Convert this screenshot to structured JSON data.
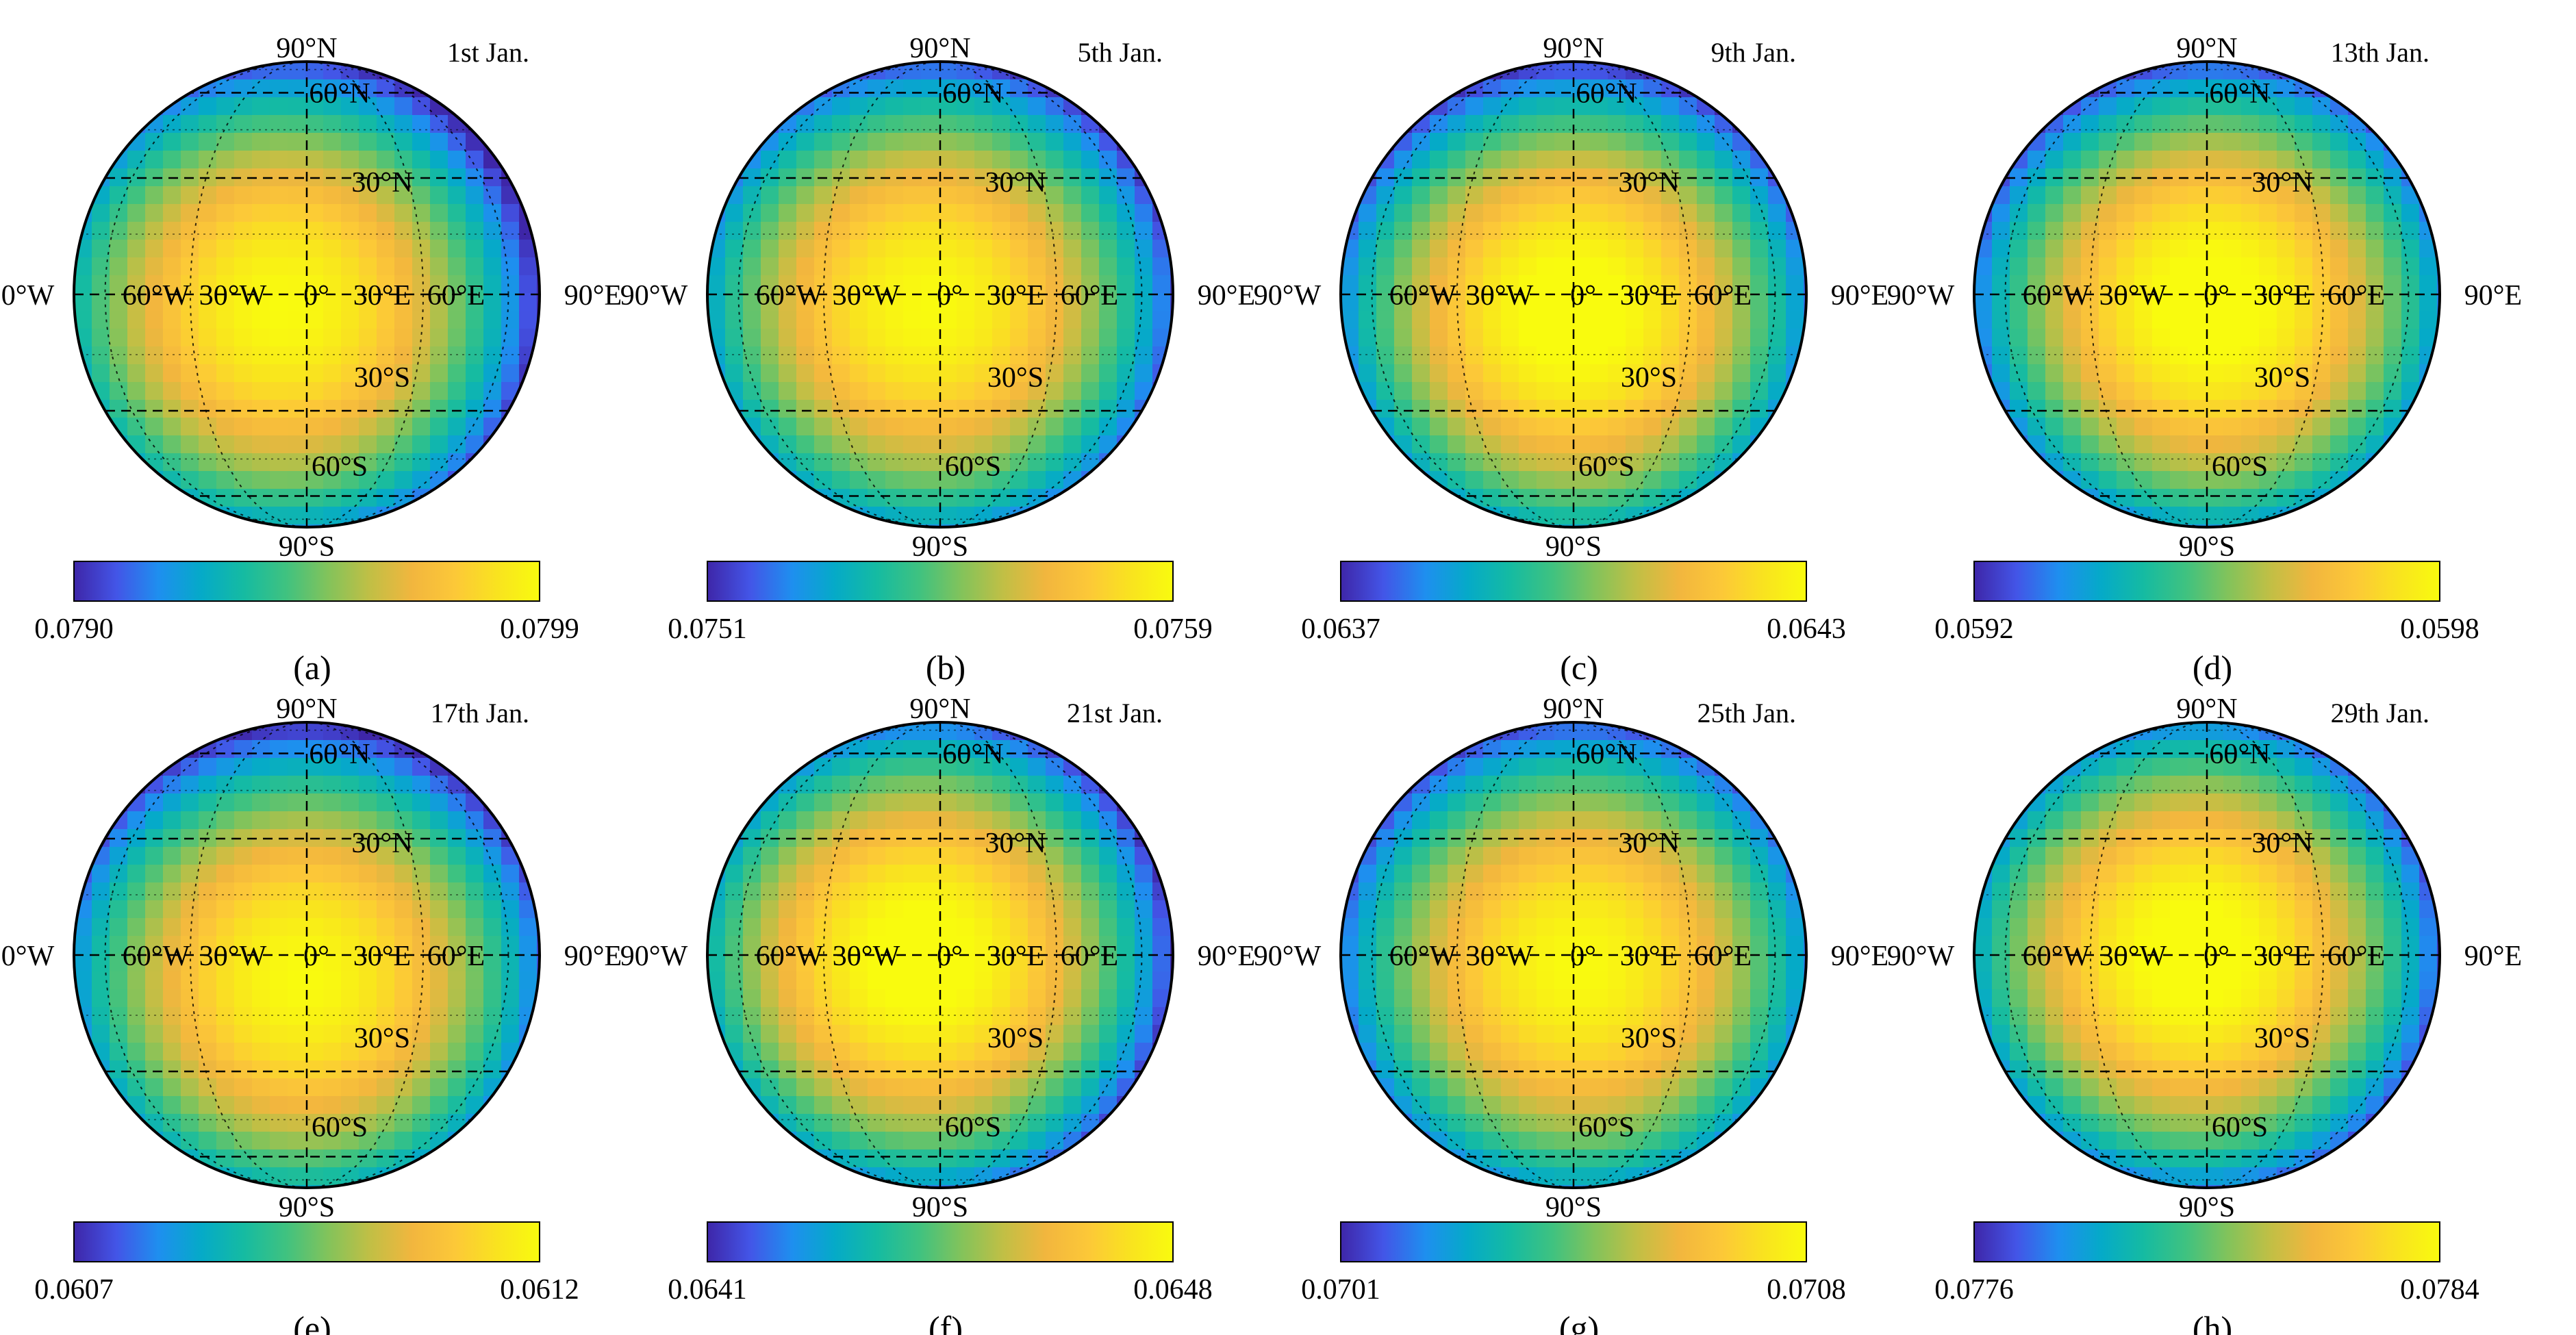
{
  "chart_data": [
    {
      "type": "heatmap",
      "panel_label": "(a)",
      "date": "1st Jan.",
      "colorbar": {
        "min_label": "0.0790",
        "max_label": "0.0799",
        "min": 0.079,
        "max": 0.0799
      },
      "center_offset": [
        -0.1,
        0.06
      ],
      "hot_scale": 1.0
    },
    {
      "type": "heatmap",
      "panel_label": "(b)",
      "date": "5th Jan.",
      "colorbar": {
        "min_label": "0.0751",
        "max_label": "0.0759",
        "min": 0.0751,
        "max": 0.0759
      },
      "center_offset": [
        -0.05,
        0.05
      ],
      "hot_scale": 1.0
    },
    {
      "type": "heatmap",
      "panel_label": "(c)",
      "date": "9th Jan.",
      "colorbar": {
        "min_label": "0.0637",
        "max_label": "0.0643",
        "min": 0.0637,
        "max": 0.0643
      },
      "center_offset": [
        0.0,
        0.08
      ],
      "hot_scale": 1.05
    },
    {
      "type": "heatmap",
      "panel_label": "(d)",
      "date": "13th Jan.",
      "colorbar": {
        "min_label": "0.0592",
        "max_label": "0.0598",
        "min": 0.0592,
        "max": 0.0598
      },
      "center_offset": [
        0.02,
        0.05
      ],
      "hot_scale": 1.05
    },
    {
      "type": "heatmap",
      "panel_label": "(e)",
      "date": "17th Jan.",
      "colorbar": {
        "min_label": "0.0607",
        "max_label": "0.0612",
        "min": 0.0607,
        "max": 0.0612
      },
      "center_offset": [
        -0.02,
        0.1
      ],
      "hot_scale": 1.0
    },
    {
      "type": "heatmap",
      "panel_label": "(f)",
      "date": "21st Jan.",
      "colorbar": {
        "min_label": "0.0641",
        "max_label": "0.0648",
        "min": 0.0641,
        "max": 0.0648
      },
      "center_offset": [
        -0.08,
        0.02
      ],
      "hot_scale": 1.05
    },
    {
      "type": "heatmap",
      "panel_label": "(g)",
      "date": "25th Jan.",
      "colorbar": {
        "min_label": "0.0701",
        "max_label": "0.0708",
        "min": 0.0701,
        "max": 0.0708
      },
      "center_offset": [
        0.02,
        0.05
      ],
      "hot_scale": 1.0
    },
    {
      "type": "heatmap",
      "panel_label": "(h)",
      "date": "29th Jan.",
      "colorbar": {
        "min_label": "0.0776",
        "max_label": "0.0784",
        "min": 0.0776,
        "max": 0.0784
      },
      "center_offset": [
        -0.05,
        0.0
      ],
      "hot_scale": 1.05
    }
  ],
  "map_labels": {
    "meridians": [
      "90°W",
      "60°W",
      "30°W",
      "0°",
      "30°E",
      "60°E",
      "90°E"
    ],
    "parallels": [
      "90°N",
      "60°N",
      "30°N",
      "30°S",
      "60°S",
      "90°S"
    ]
  },
  "colormap": [
    "#3e26a8",
    "#4355e7",
    "#1e8fef",
    "#05aac8",
    "#15bba2",
    "#3fc280",
    "#82c35b",
    "#c1bf45",
    "#f2b63e",
    "#fcc838",
    "#f9e31f",
    "#f9fb0e"
  ]
}
